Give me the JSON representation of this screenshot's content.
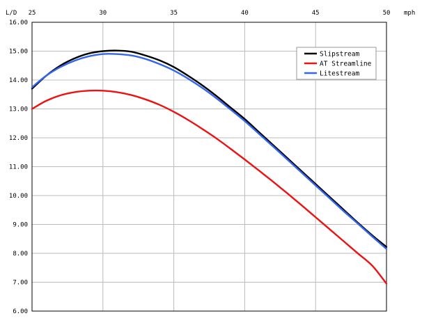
{
  "chart_data": {
    "type": "line",
    "title": "",
    "xlabel": "mph",
    "ylabel": "L/D",
    "xlim": [
      25,
      50
    ],
    "ylim": [
      6,
      16
    ],
    "x_ticks": [
      "25",
      "30",
      "35",
      "40",
      "45",
      "50"
    ],
    "y_ticks": [
      "6.00",
      "7.00",
      "8.00",
      "9.00",
      "10.00",
      "11.00",
      "12.00",
      "13.00",
      "14.00",
      "15.00",
      "16.00"
    ],
    "x_grid_values": [
      25,
      30,
      35,
      40,
      45,
      50
    ],
    "y_grid_values": [
      6,
      7,
      8,
      9,
      10,
      11,
      12,
      13,
      14,
      15,
      16
    ],
    "grid": true,
    "legend_position": "top-right",
    "series": [
      {
        "name": "Slipstream",
        "color": "#000000",
        "x": [
          25,
          26,
          27,
          28,
          29,
          30,
          31,
          32,
          33,
          34,
          35,
          36,
          37,
          38,
          39,
          40,
          41,
          42,
          43,
          44,
          45,
          46,
          47,
          48,
          49,
          50
        ],
        "y": [
          13.7,
          14.15,
          14.5,
          14.75,
          14.92,
          15.0,
          15.02,
          14.98,
          14.85,
          14.68,
          14.45,
          14.15,
          13.82,
          13.45,
          13.05,
          12.65,
          12.2,
          11.75,
          11.3,
          10.85,
          10.4,
          9.95,
          9.5,
          9.05,
          8.62,
          8.22
        ]
      },
      {
        "name": "AT Streamline",
        "color": "#ee1111",
        "x": [
          25,
          26,
          27,
          28,
          29,
          30,
          31,
          32,
          33,
          34,
          35,
          36,
          37,
          38,
          39,
          40,
          41,
          42,
          43,
          44,
          45,
          46,
          47,
          48,
          49,
          50
        ],
        "y": [
          13.0,
          13.28,
          13.47,
          13.58,
          13.63,
          13.63,
          13.58,
          13.48,
          13.33,
          13.14,
          12.9,
          12.62,
          12.31,
          11.98,
          11.62,
          11.25,
          10.87,
          10.48,
          10.08,
          9.67,
          9.25,
          8.83,
          8.41,
          7.99,
          7.57,
          6.95
        ]
      },
      {
        "name": "Litestream",
        "color": "#3366ee",
        "x": [
          25,
          26,
          27,
          28,
          29,
          30,
          31,
          32,
          33,
          34,
          35,
          36,
          37,
          38,
          39,
          40,
          41,
          42,
          43,
          44,
          45,
          46,
          47,
          48,
          49,
          50
        ],
        "y": [
          13.75,
          14.15,
          14.45,
          14.67,
          14.82,
          14.9,
          14.9,
          14.85,
          14.73,
          14.55,
          14.33,
          14.05,
          13.73,
          13.37,
          12.98,
          12.58,
          12.14,
          11.7,
          11.25,
          10.8,
          10.35,
          9.9,
          9.45,
          9.02,
          8.58,
          8.15
        ]
      }
    ]
  }
}
